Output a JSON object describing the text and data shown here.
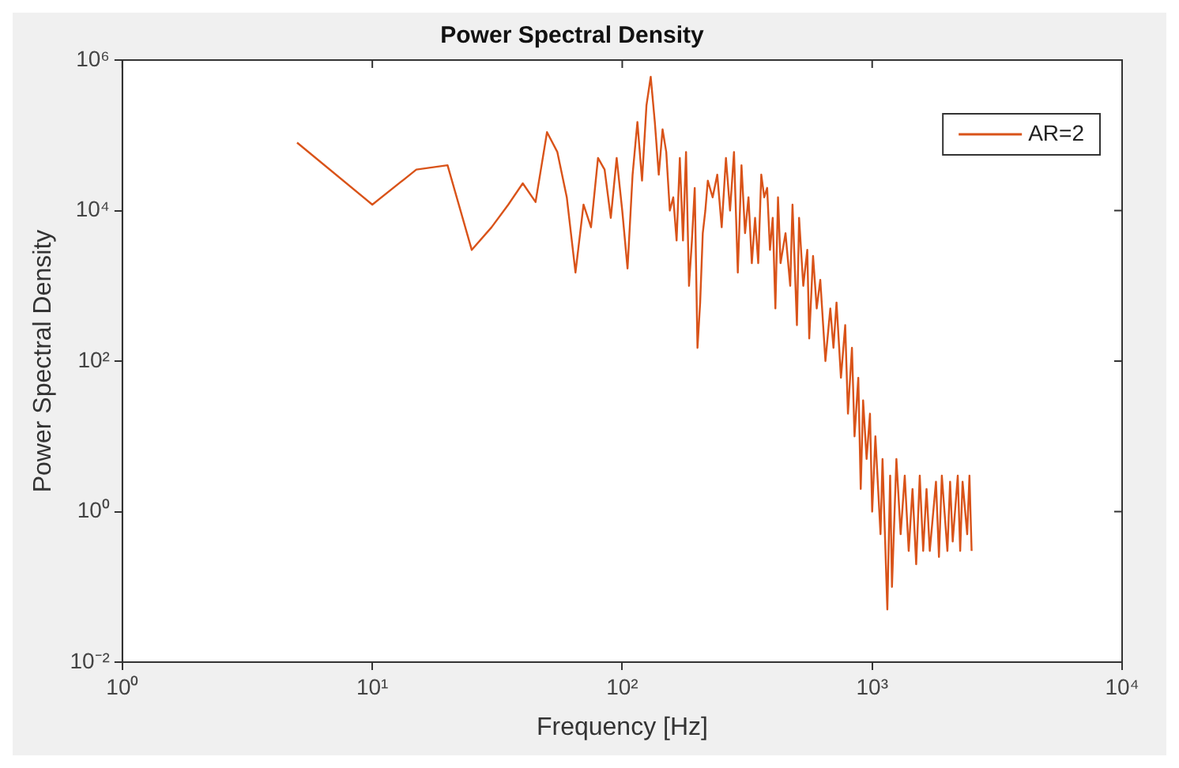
{
  "chart_data": {
    "type": "line",
    "title": "Power Spectral Density",
    "xlabel": "Frequency [Hz]",
    "ylabel": "Power Spectral Density",
    "log": "xy",
    "grid": false,
    "legend": "top right",
    "line_style": "solid",
    "marker": "none",
    "xlim": [
      1,
      10000
    ],
    "xticks": [
      {
        "value": 1,
        "label": "10⁰"
      },
      {
        "value": 10,
        "label": "10¹"
      },
      {
        "value": 100,
        "label": "10²"
      },
      {
        "value": 1000,
        "label": "10³"
      },
      {
        "value": 10000,
        "label": "10⁴"
      }
    ],
    "ylim": [
      0.01,
      1000000
    ],
    "yticks": [
      {
        "value": 0.01,
        "label": "10⁻²"
      },
      {
        "value": 1,
        "label": "10⁰"
      },
      {
        "value": 100,
        "label": "10²"
      },
      {
        "value": 10000,
        "label": "10⁴"
      },
      {
        "value": 1000000,
        "label": "10⁶"
      }
    ],
    "series": [
      {
        "name": "AR=2",
        "color": "#d95319",
        "x": [
          5,
          10,
          15,
          20,
          25,
          30,
          35,
          40,
          45,
          50,
          55,
          60,
          65,
          70,
          75,
          80,
          85,
          90,
          95,
          100,
          105,
          110,
          115,
          120,
          125,
          130,
          135,
          140,
          145,
          150,
          155,
          160,
          165,
          170,
          175,
          180,
          185,
          190,
          195,
          200,
          205,
          210,
          215,
          220,
          230,
          240,
          250,
          260,
          270,
          280,
          290,
          300,
          310,
          320,
          330,
          340,
          350,
          360,
          370,
          380,
          390,
          400,
          410,
          420,
          430,
          450,
          470,
          480,
          500,
          510,
          530,
          550,
          560,
          580,
          600,
          620,
          650,
          680,
          700,
          720,
          750,
          780,
          800,
          830,
          850,
          880,
          900,
          920,
          950,
          980,
          1000,
          1030,
          1080,
          1100,
          1150,
          1180,
          1200,
          1250,
          1300,
          1350,
          1400,
          1450,
          1500,
          1550,
          1600,
          1650,
          1700,
          1800,
          1850,
          1900,
          2000,
          2050,
          2100,
          2200,
          2250,
          2300,
          2400,
          2450,
          2500
        ],
        "values": [
          80000,
          12000,
          35000,
          40000,
          3000,
          6000,
          12000,
          23000,
          13000,
          110000,
          60000,
          15000,
          1500,
          12000,
          6000,
          50000,
          35000,
          8000,
          50000,
          10000,
          1700,
          30000,
          150000,
          25000,
          250000,
          600000,
          150000,
          30000,
          120000,
          60000,
          10000,
          15000,
          4000,
          50000,
          4000,
          60000,
          1000,
          4000,
          20000,
          150,
          600,
          5000,
          10000,
          25000,
          15000,
          30000,
          6000,
          50000,
          10000,
          60000,
          1500,
          40000,
          5000,
          15000,
          2000,
          8000,
          2000,
          30000,
          15000,
          20000,
          3000,
          8000,
          500,
          15000,
          2000,
          5000,
          1000,
          12000,
          300,
          8000,
          1000,
          3000,
          200,
          2500,
          500,
          1200,
          100,
          500,
          150,
          600,
          60,
          300,
          20,
          150,
          10,
          60,
          2,
          30,
          5,
          20,
          1,
          10,
          0.5,
          5,
          0.05,
          3,
          0.1,
          5,
          0.5,
          3,
          0.3,
          2,
          0.2,
          3,
          0.3,
          2,
          0.3,
          2.5,
          0.25,
          3,
          0.3,
          2.5,
          0.4,
          3,
          0.3,
          2.5,
          0.5,
          3,
          0.3
        ]
      }
    ]
  }
}
